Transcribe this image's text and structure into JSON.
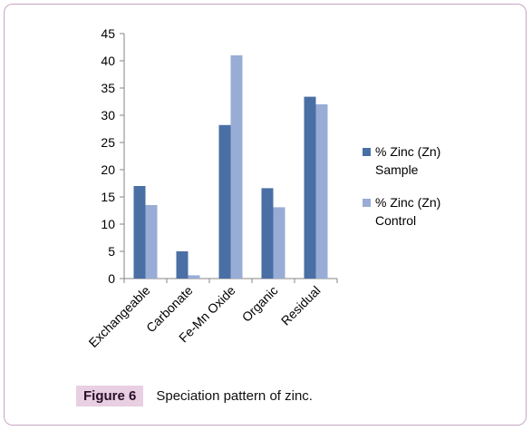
{
  "chart_data": {
    "type": "bar",
    "categories": [
      "Exchangeable",
      "Carbonate",
      "Fe-Mn Oxide",
      "Organic",
      "Residual"
    ],
    "series": [
      {
        "name_line1": "% Zinc (Zn)",
        "name_line2": "Sample",
        "color": "#4a6fa5",
        "values": [
          17,
          5,
          28.2,
          16.6,
          33.4
        ]
      },
      {
        "name_line1": "% Zinc (Zn)",
        "name_line2": "Control",
        "color": "#98acd6",
        "values": [
          13.5,
          0.6,
          41,
          13.1,
          32
        ]
      }
    ],
    "yticks": [
      0,
      5,
      10,
      15,
      20,
      25,
      30,
      35,
      40,
      45
    ],
    "ylim": [
      0,
      45
    ],
    "grid": false,
    "legend_position": "right"
  },
  "caption": {
    "label": "Figure 6",
    "text": "Speciation pattern of zinc."
  }
}
